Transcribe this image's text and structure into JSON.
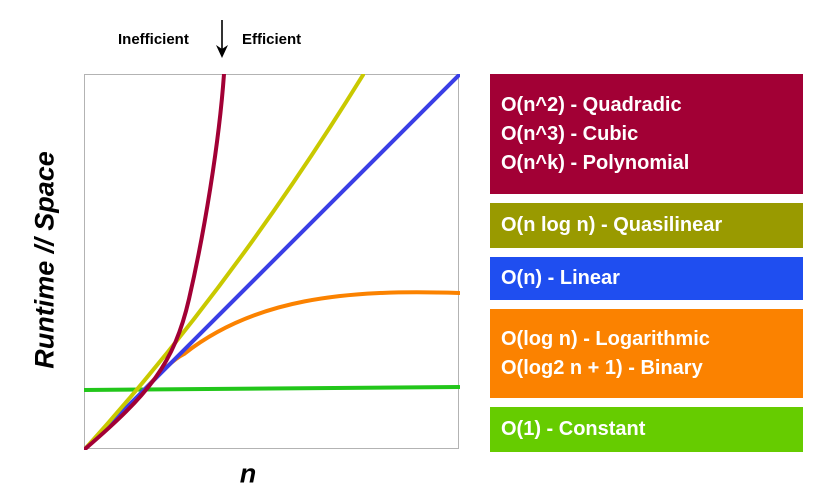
{
  "labels": {
    "inefficient": "Inefficient",
    "efficient": "Efficient",
    "y_axis": "Runtime // Space",
    "x_axis": "n"
  },
  "legend": [
    {
      "id": "polynomial",
      "color": "#a20035",
      "lines": [
        "O(n^2) - Quadradic",
        "O(n^3) - Cubic",
        "O(n^k) - Polynomial"
      ]
    },
    {
      "id": "quasilinear",
      "color": "#999a00",
      "lines": [
        "O(n log n) - Quasilinear"
      ]
    },
    {
      "id": "linear",
      "color": "#1f4ef0",
      "lines": [
        "O(n) - Linear"
      ]
    },
    {
      "id": "logarithmic",
      "color": "#fb8200",
      "lines": [
        "O(log n) - Logarithmic",
        "O(log2 n + 1) - Binary"
      ]
    },
    {
      "id": "constant",
      "color": "#66cc00",
      "lines": [
        "O(1) - Constant"
      ]
    }
  ],
  "curve_colors": {
    "polynomial": "#a20035",
    "quasilinear": "#c9c900",
    "linear": "#3a3ee6",
    "logarithmic": "#fb8200",
    "constant": "#22c61a"
  }
}
